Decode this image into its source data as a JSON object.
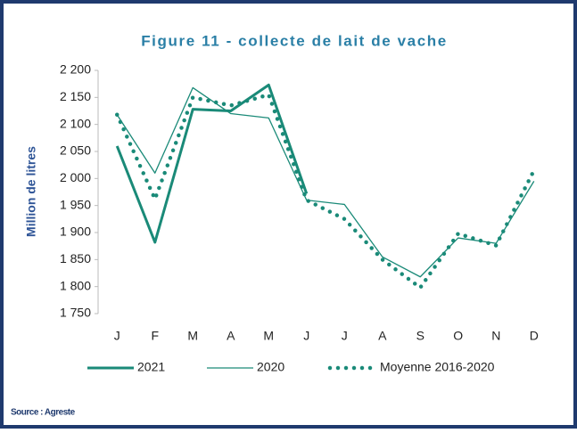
{
  "chart_data": {
    "type": "line",
    "title": "Figure 11 - collecte de lait de vache",
    "y_label": "Million de litres",
    "source": "Source : Agreste",
    "categories": [
      "J",
      "F",
      "M",
      "A",
      "M",
      "J",
      "J",
      "A",
      "S",
      "O",
      "N",
      "D"
    ],
    "series": [
      {
        "name": "2021",
        "color": "#1a8a78",
        "style": "thick",
        "values": [
          2060,
          1882,
          2128,
          2125,
          2173,
          1972,
          null,
          null,
          null,
          null,
          null,
          null
        ]
      },
      {
        "name": "2020",
        "color": "#1a8a78",
        "style": "thin",
        "values": [
          2118,
          2010,
          2168,
          2120,
          2112,
          1960,
          1952,
          1855,
          1818,
          1890,
          1880,
          1995
        ]
      },
      {
        "name": "Moyenne 2016-2020",
        "color": "#1a8a78",
        "style": "dotted",
        "values": [
          2118,
          1962,
          2150,
          2135,
          2155,
          1960,
          1925,
          1850,
          1798,
          1898,
          1876,
          2015
        ]
      }
    ],
    "ylim": [
      1750,
      2200
    ],
    "yticks": [
      {
        "value": 1750,
        "label": "1 750"
      },
      {
        "value": 1800,
        "label": "1 800"
      },
      {
        "value": 1850,
        "label": "1 850"
      },
      {
        "value": 1900,
        "label": "1 900"
      },
      {
        "value": 1950,
        "label": "1 950"
      },
      {
        "value": 2000,
        "label": "2 000"
      },
      {
        "value": 2050,
        "label": "2 050"
      },
      {
        "value": 2100,
        "label": "2 100"
      },
      {
        "value": 2150,
        "label": "2 150"
      },
      {
        "value": 2200,
        "label": "2 200"
      }
    ],
    "grid": false
  }
}
